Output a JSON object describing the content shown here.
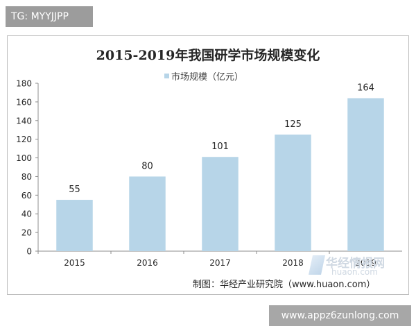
{
  "badge_text": "TG: MYYJJPP",
  "watermark_bottom": "www.appz6zunlong.com",
  "watermark_brand": "华经情报网",
  "watermark_brand_url": "huaon.com",
  "source_note": "制图：华经产业研究院（www.huaon.com）",
  "colors": {
    "bar": "#b7d5e8",
    "axis": "#8c8c8c",
    "text": "#262626"
  },
  "chart_data": {
    "type": "bar",
    "title": "2015-2019年我国研学市场规模变化",
    "legend": "市场规模（亿元）",
    "legend_position": "top",
    "categories": [
      "2015",
      "2016",
      "2017",
      "2018",
      "2019"
    ],
    "values": [
      55,
      80,
      101,
      125,
      164
    ],
    "ylim": [
      0,
      180
    ],
    "yticks": [
      0,
      20,
      40,
      60,
      80,
      100,
      120,
      140,
      160,
      180
    ],
    "grid": false
  }
}
